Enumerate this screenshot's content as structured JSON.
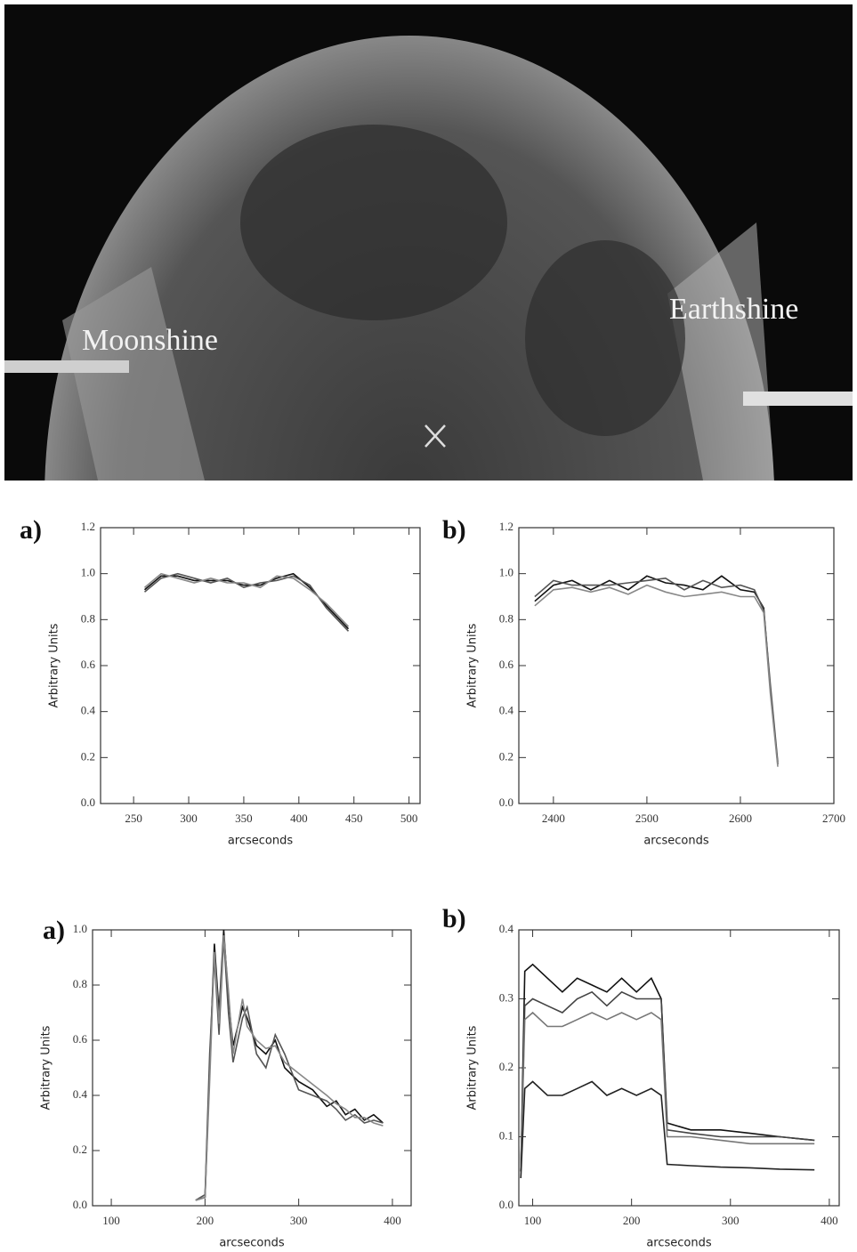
{
  "image": {
    "labels": [
      "Moonshine",
      "Earthshine"
    ]
  },
  "chart_data": [
    {
      "type": "line",
      "panel_label": "a)",
      "ylabel": "Arbitrary Units",
      "xlabel": "arcseconds",
      "xlim": [
        220,
        510
      ],
      "ylim": [
        0,
        1.2
      ],
      "xticks": [
        250,
        300,
        350,
        400,
        450,
        500
      ],
      "yticks": [
        {
          "value": 0,
          "label": "0.0"
        },
        0.2,
        0.4,
        0.6,
        {
          "value": 0.8,
          "label": "0.8"
        },
        {
          "value": 1,
          "label": "1.0"
        },
        1.2
      ],
      "x": [
        260,
        275,
        290,
        305,
        320,
        335,
        350,
        365,
        380,
        395,
        410,
        425,
        445
      ],
      "series": [
        {
          "color": "#111111",
          "values": [
            0.93,
            0.99,
            0.99,
            0.97,
            0.97,
            0.97,
            0.95,
            0.95,
            0.98,
            1.0,
            0.94,
            0.86,
            0.76
          ]
        },
        {
          "color": "#555555",
          "values": [
            0.92,
            0.98,
            1.0,
            0.98,
            0.96,
            0.98,
            0.94,
            0.96,
            0.97,
            0.99,
            0.95,
            0.85,
            0.75
          ]
        },
        {
          "color": "#888888",
          "values": [
            0.94,
            1.0,
            0.98,
            0.96,
            0.98,
            0.96,
            0.96,
            0.94,
            0.99,
            0.98,
            0.93,
            0.87,
            0.77
          ]
        }
      ]
    },
    {
      "type": "line",
      "panel_label": "b)",
      "ylabel": "Arbitrary Units",
      "xlabel": "arcseconds",
      "xlim": [
        2363,
        2700
      ],
      "ylim": [
        0,
        1.2
      ],
      "xticks": [
        2400,
        2500,
        2600,
        2700
      ],
      "yticks": [
        {
          "value": 0,
          "label": "0.0"
        },
        0.2,
        0.4,
        0.6,
        {
          "value": 0.8,
          "label": "0.8"
        },
        {
          "value": 1,
          "label": "1.0"
        },
        1.2
      ],
      "x": [
        2380,
        2400,
        2420,
        2440,
        2460,
        2480,
        2500,
        2520,
        2540,
        2560,
        2580,
        2600,
        2615,
        2625,
        2632,
        2640
      ],
      "series": [
        {
          "color": "#111111",
          "values": [
            0.88,
            0.95,
            0.97,
            0.93,
            0.97,
            0.93,
            0.99,
            0.96,
            0.95,
            0.93,
            0.99,
            0.93,
            0.92,
            0.85,
            0.5,
            0.17
          ]
        },
        {
          "color": "#555555",
          "values": [
            0.9,
            0.97,
            0.95,
            0.95,
            0.95,
            0.96,
            0.97,
            0.98,
            0.93,
            0.97,
            0.94,
            0.95,
            0.93,
            0.84,
            0.52,
            0.18
          ]
        },
        {
          "color": "#888888",
          "values": [
            0.86,
            0.93,
            0.94,
            0.92,
            0.94,
            0.91,
            0.95,
            0.92,
            0.9,
            0.91,
            0.92,
            0.9,
            0.9,
            0.83,
            0.48,
            0.16
          ]
        }
      ]
    },
    {
      "type": "line",
      "panel_label": "a)",
      "ylabel": "Arbitrary Units",
      "xlabel": "arcseconds",
      "xlim": [
        80,
        420
      ],
      "ylim": [
        0,
        1.0
      ],
      "xticks": [
        100,
        200,
        300,
        400
      ],
      "yticks": [
        {
          "value": 0,
          "label": "0.0"
        },
        0.2,
        0.4,
        0.6,
        0.8,
        {
          "value": 1,
          "label": "1.0"
        }
      ],
      "x": [
        190,
        200,
        205,
        210,
        215,
        220,
        225,
        230,
        240,
        245,
        255,
        265,
        275,
        285,
        300,
        315,
        330,
        340,
        350,
        360,
        370,
        380,
        390
      ],
      "series": [
        {
          "color": "#111111",
          "values": [
            0.02,
            0.03,
            0.5,
            0.95,
            0.7,
            1.0,
            0.75,
            0.58,
            0.72,
            0.68,
            0.58,
            0.55,
            0.6,
            0.5,
            0.45,
            0.42,
            0.36,
            0.38,
            0.33,
            0.35,
            0.31,
            0.33,
            0.3
          ]
        },
        {
          "color": "#555555",
          "values": [
            0.02,
            0.04,
            0.55,
            0.9,
            0.62,
            0.97,
            0.7,
            0.52,
            0.68,
            0.72,
            0.55,
            0.5,
            0.62,
            0.55,
            0.42,
            0.4,
            0.38,
            0.35,
            0.31,
            0.33,
            0.3,
            0.31,
            0.3
          ]
        },
        {
          "color": "#888888",
          "values": [
            0.02,
            0.03,
            0.45,
            0.92,
            0.66,
            0.98,
            0.78,
            0.55,
            0.75,
            0.65,
            0.6,
            0.57,
            0.58,
            0.52,
            0.48,
            0.44,
            0.4,
            0.37,
            0.35,
            0.32,
            0.32,
            0.3,
            0.29
          ]
        }
      ]
    },
    {
      "type": "line",
      "panel_label": "b)",
      "ylabel": "Arbitrary Units",
      "xlabel": "arcseconds",
      "xlim": [
        86,
        410
      ],
      "ylim": [
        0,
        0.4
      ],
      "xticks": [
        100,
        200,
        300,
        400
      ],
      "yticks": [
        {
          "value": 0,
          "label": "0.0"
        },
        0.1,
        0.2,
        0.3,
        0.4
      ],
      "x": [
        88,
        92,
        100,
        115,
        130,
        145,
        160,
        175,
        190,
        205,
        220,
        230,
        236,
        260,
        290,
        320,
        350,
        385
      ],
      "series": [
        {
          "color": "#111111",
          "values": [
            0.05,
            0.34,
            0.35,
            0.33,
            0.31,
            0.33,
            0.32,
            0.31,
            0.33,
            0.31,
            0.33,
            0.3,
            0.12,
            0.11,
            0.11,
            0.105,
            0.1,
            0.095
          ]
        },
        {
          "color": "#444444",
          "values": [
            0.05,
            0.29,
            0.3,
            0.29,
            0.28,
            0.3,
            0.31,
            0.29,
            0.31,
            0.3,
            0.3,
            0.3,
            0.11,
            0.105,
            0.1,
            0.1,
            0.1,
            0.095
          ]
        },
        {
          "color": "#777777",
          "values": [
            0.05,
            0.27,
            0.28,
            0.26,
            0.26,
            0.27,
            0.28,
            0.27,
            0.28,
            0.27,
            0.28,
            0.27,
            0.1,
            0.1,
            0.095,
            0.09,
            0.09,
            0.09
          ]
        },
        {
          "color": "#222222",
          "values": [
            0.04,
            0.17,
            0.18,
            0.16,
            0.16,
            0.17,
            0.18,
            0.16,
            0.17,
            0.16,
            0.17,
            0.16,
            0.06,
            0.058,
            0.056,
            0.055,
            0.053,
            0.052
          ]
        }
      ]
    }
  ]
}
